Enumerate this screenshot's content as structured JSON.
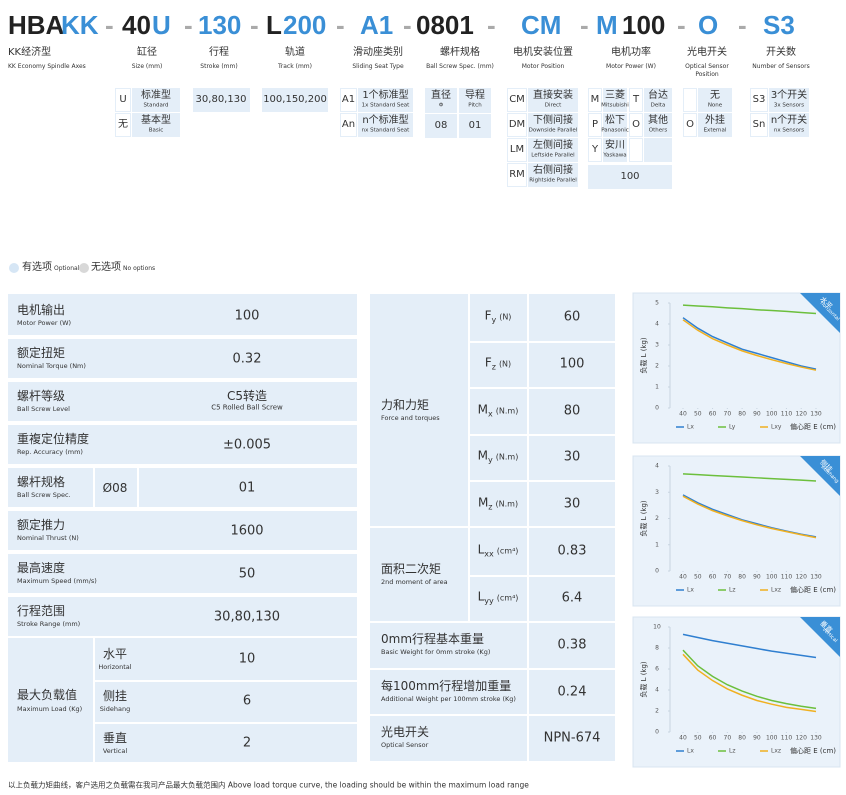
{
  "header": {
    "code": [
      {
        "text": "HBA",
        "color": "#222222"
      },
      {
        "text": "KK",
        "color": "#3a8fd6"
      },
      {
        "text": "-",
        "color": "#aaaaaa"
      },
      {
        "text": "40",
        "color": "#222222"
      },
      {
        "text": "U",
        "color": "#3a8fd6"
      },
      {
        "text": "-",
        "color": "#aaaaaa"
      },
      {
        "text": "130",
        "color": "#3a8fd6"
      },
      {
        "text": "-",
        "color": "#aaaaaa"
      },
      {
        "text": "L",
        "color": "#222222"
      },
      {
        "text": "200",
        "color": "#3a8fd6"
      },
      {
        "text": "-",
        "color": "#aaaaaa"
      },
      {
        "text": "A1",
        "color": "#3a8fd6"
      },
      {
        "text": "-",
        "color": "#aaaaaa"
      },
      {
        "text": "0801",
        "color": "#222222"
      },
      {
        "text": "-",
        "color": "#aaaaaa"
      },
      {
        "text": "CM",
        "color": "#3a8fd6"
      },
      {
        "text": "-",
        "color": "#aaaaaa"
      },
      {
        "text": "M",
        "color": "#3a8fd6"
      },
      {
        "text": "100",
        "color": "#222222"
      },
      {
        "text": "-",
        "color": "#aaaaaa"
      },
      {
        "text": "O",
        "color": "#3a8fd6"
      },
      {
        "text": "-",
        "color": "#aaaaaa"
      },
      {
        "text": "S3",
        "color": "#3a8fd6"
      }
    ]
  },
  "columns": [
    {
      "cn": "KK经济型",
      "en": "KK Economy Spindle Axes"
    },
    {
      "cn": "缸径",
      "en": "Size (mm)"
    },
    {
      "cn": "行程",
      "en": "Stroke (mm)"
    },
    {
      "cn": "轨道",
      "en": "Track (mm)"
    },
    {
      "cn": "滑动座类别",
      "en": "Sliding Seat Type"
    },
    {
      "cn": "螺杆规格",
      "en": "Ball Screw Spec. (mm)"
    },
    {
      "cn": "电机安装位置",
      "en": "Motor Position"
    },
    {
      "cn": "电机功率",
      "en": "Motor Power (W)"
    },
    {
      "cn": "光电开关",
      "en": "Optical Sensor Position"
    },
    {
      "cn": "开关数",
      "en": "Number of Sensors"
    }
  ],
  "options": {
    "size": [
      {
        "code": "U",
        "cn": "标准型",
        "en": "Standard"
      },
      {
        "code": "无",
        "cn": "基本型",
        "en": "Basic"
      }
    ],
    "stroke": "30,80,130",
    "track": "100,150,200",
    "slide": [
      {
        "code": "A1",
        "cn": "1个标准型",
        "en": "1x Standard Seat"
      },
      {
        "code": "An",
        "cn": "n个标准型",
        "en": "nx Standard Seat"
      }
    ],
    "screw": {
      "headers": [
        {
          "cn": "直径",
          "en": "Φ"
        },
        {
          "cn": "导程",
          "en": "Pitch"
        }
      ],
      "values": [
        "08",
        "01"
      ]
    },
    "motor_position": [
      {
        "code": "CM",
        "cn": "直接安装",
        "en": "Direct"
      },
      {
        "code": "DM",
        "cn": "下侧间接",
        "en": "Downside Parallel"
      },
      {
        "code": "LM",
        "cn": "左侧间接",
        "en": "Leftside Parallel"
      },
      {
        "code": "RM",
        "cn": "右侧间接",
        "en": "Rightside Parallel"
      }
    ],
    "motor_power": {
      "entries": [
        {
          "code": "M",
          "cn": "三菱",
          "en": "Mitsubishi"
        },
        {
          "code": "T",
          "cn": "台达",
          "en": "Delta"
        },
        {
          "code": "P",
          "cn": "松下",
          "en": "Panasonic"
        },
        {
          "code": "O",
          "cn": "其他",
          "en": "Others"
        },
        {
          "code": "Y",
          "cn": "安川",
          "en": "Yaskawa"
        }
      ],
      "value": 100
    },
    "sensor": [
      {
        "cn": "无",
        "en": "None"
      },
      {
        "code": "O",
        "cn": "外挂",
        "en": "External"
      }
    ],
    "sensor_count": [
      {
        "code": "S3",
        "cn": "3个开关",
        "en": "3x Sensors"
      },
      {
        "code": "Sn",
        "cn": "n个开关",
        "en": "nx Sensors"
      }
    ]
  },
  "legend": {
    "optional_cn": "有选项",
    "optional_en": "Optional",
    "none_cn": "无选项",
    "none_en": "No options"
  },
  "spec_table": {
    "rows": [
      {
        "cn": "电机输出",
        "en": "Motor Power (W)",
        "value": 100
      },
      {
        "cn": "额定扭矩",
        "en": "Nominal Torque (Nm)",
        "value": 0.32
      },
      {
        "cn": "螺杆等级",
        "en": "Ball Screw Level",
        "value": "C5转造",
        "value_en": "C5 Rolled Ball Screw"
      },
      {
        "cn": "重複定位精度",
        "en": "Rep. Accuracy (mm)",
        "value": "±0.005"
      },
      {
        "cn": "螺杆规格",
        "en": "Ball Screw Spec.",
        "sub": "Ø08",
        "value": "01"
      },
      {
        "cn": "额定推力",
        "en": "Nominal Thrust (N)",
        "value": 1600
      },
      {
        "cn": "最高速度",
        "en": "Maximum Speed (mm/s)",
        "value": 50
      },
      {
        "cn": "行程范围",
        "en": "Stroke Range (mm)",
        "value": "30,80,130"
      },
      {
        "cn": "最大负载值",
        "en": "Maximum Load (Kg)",
        "subs": [
          {
            "cn": "水平",
            "en": "Horizontal",
            "value": 10
          },
          {
            "cn": "侧挂",
            "en": "Sidehang",
            "value": 6
          },
          {
            "cn": "垂直",
            "en": "Vertical",
            "value": 2
          }
        ]
      }
    ]
  },
  "force_table": {
    "groups": [
      {
        "cn": "力和力矩",
        "en": "Force and torques",
        "items": [
          {
            "sym": "F",
            "sub": "y",
            "unit": "(N)",
            "value": 60
          },
          {
            "sym": "F",
            "sub": "z",
            "unit": "(N)",
            "value": 100
          },
          {
            "sym": "M",
            "sub": "x",
            "unit": "(N.m)",
            "value": 80
          },
          {
            "sym": "M",
            "sub": "y",
            "unit": "(N.m)",
            "value": 30
          },
          {
            "sym": "M",
            "sub": "z",
            "unit": "(N.m)",
            "value": 30
          }
        ]
      },
      {
        "cn": "面积二次矩",
        "en": "2nd moment of area",
        "items": [
          {
            "sym": "L",
            "sub": "xx",
            "unit": "(cm⁴)",
            "value": 0.83
          },
          {
            "sym": "L",
            "sub": "yy",
            "unit": "(cm⁴)",
            "value": 6.4
          }
        ]
      },
      {
        "cn": "0mm行程基本重量",
        "en": "Basic Weight for 0mm stroke (Kg)",
        "value": 0.38
      },
      {
        "cn": "每100mm行程增加重量",
        "en": "Additional Weight per 100mm stroke (Kg)",
        "value": 0.24
      },
      {
        "cn": "光电开关",
        "en": "Optical Sensor",
        "value": "NPN-674"
      }
    ]
  },
  "charts": [
    {
      "type": "line",
      "badge_cn": "水平",
      "badge_en": "horizontal",
      "y_label": "负载 L (kg)",
      "x_label": "偏心距 E (cm)",
      "x": [
        40,
        50,
        60,
        70,
        80,
        90,
        100,
        110,
        120,
        130
      ],
      "xlim": [
        40,
        130
      ],
      "xticks": [
        40,
        50,
        60,
        70,
        80,
        90,
        100,
        110,
        120,
        130
      ],
      "ylim": [
        0,
        5
      ],
      "yticks": [
        0,
        1,
        2,
        3,
        4,
        5
      ],
      "series": [
        {
          "name": "Lx",
          "color": "#2f7fd0",
          "values": [
            4.3,
            3.8,
            3.4,
            3.1,
            2.8,
            2.6,
            2.4,
            2.2,
            2.0,
            1.85
          ]
        },
        {
          "name": "Ly",
          "color": "#6cbf3c",
          "values": [
            4.9,
            4.86,
            4.82,
            4.77,
            4.73,
            4.68,
            4.64,
            4.6,
            4.55,
            4.5
          ]
        },
        {
          "name": "Lxy",
          "color": "#f0b020",
          "values": [
            4.2,
            3.7,
            3.3,
            3.0,
            2.72,
            2.5,
            2.3,
            2.12,
            1.95,
            1.8
          ]
        }
      ]
    },
    {
      "type": "line",
      "badge_cn": "侧挂",
      "badge_en": "sidehang",
      "y_label": "负载 L (kg)",
      "x_label": "偏心距 E (cm)",
      "x": [
        40,
        50,
        60,
        70,
        80,
        90,
        100,
        110,
        120,
        130
      ],
      "xlim": [
        40,
        130
      ],
      "xticks": [
        40,
        50,
        60,
        70,
        80,
        90,
        100,
        110,
        120,
        130
      ],
      "ylim": [
        0,
        4
      ],
      "yticks": [
        0,
        1,
        2,
        3,
        4
      ],
      "series": [
        {
          "name": "Lx",
          "color": "#2f7fd0",
          "values": [
            2.9,
            2.6,
            2.35,
            2.15,
            1.95,
            1.8,
            1.65,
            1.52,
            1.4,
            1.3
          ]
        },
        {
          "name": "Lz",
          "color": "#6cbf3c",
          "values": [
            3.7,
            3.67,
            3.64,
            3.61,
            3.58,
            3.55,
            3.52,
            3.49,
            3.46,
            3.43
          ]
        },
        {
          "name": "Lxz",
          "color": "#f0b020",
          "values": [
            2.85,
            2.55,
            2.3,
            2.1,
            1.92,
            1.76,
            1.62,
            1.5,
            1.38,
            1.27
          ]
        }
      ]
    },
    {
      "type": "line",
      "badge_cn": "垂直",
      "badge_en": "vertical",
      "y_label": "负载 L (kg)",
      "x_label": "偏心距 E (cm)",
      "x": [
        40,
        50,
        60,
        70,
        80,
        90,
        100,
        110,
        120,
        130
      ],
      "xlim": [
        40,
        130
      ],
      "xticks": [
        40,
        50,
        60,
        70,
        80,
        90,
        100,
        110,
        120,
        130
      ],
      "ylim": [
        0,
        10
      ],
      "yticks": [
        0,
        2,
        4,
        6,
        8,
        10
      ],
      "series": [
        {
          "name": "Lx",
          "color": "#2f7fd0",
          "values": [
            9.3,
            9.0,
            8.7,
            8.45,
            8.2,
            7.95,
            7.7,
            7.5,
            7.3,
            7.1
          ]
        },
        {
          "name": "Lz",
          "color": "#6cbf3c",
          "values": [
            7.8,
            6.3,
            5.3,
            4.5,
            3.9,
            3.4,
            3.0,
            2.7,
            2.45,
            2.25
          ]
        },
        {
          "name": "Lxz",
          "color": "#f0b020",
          "values": [
            7.4,
            5.9,
            4.9,
            4.1,
            3.5,
            3.0,
            2.65,
            2.35,
            2.15,
            1.95
          ]
        }
      ]
    }
  ],
  "footer": "以上负载力矩曲线，客户选用之负载需在我司产品最大负载范围内 Above load torque curve, the loading should be within the maximum load range"
}
